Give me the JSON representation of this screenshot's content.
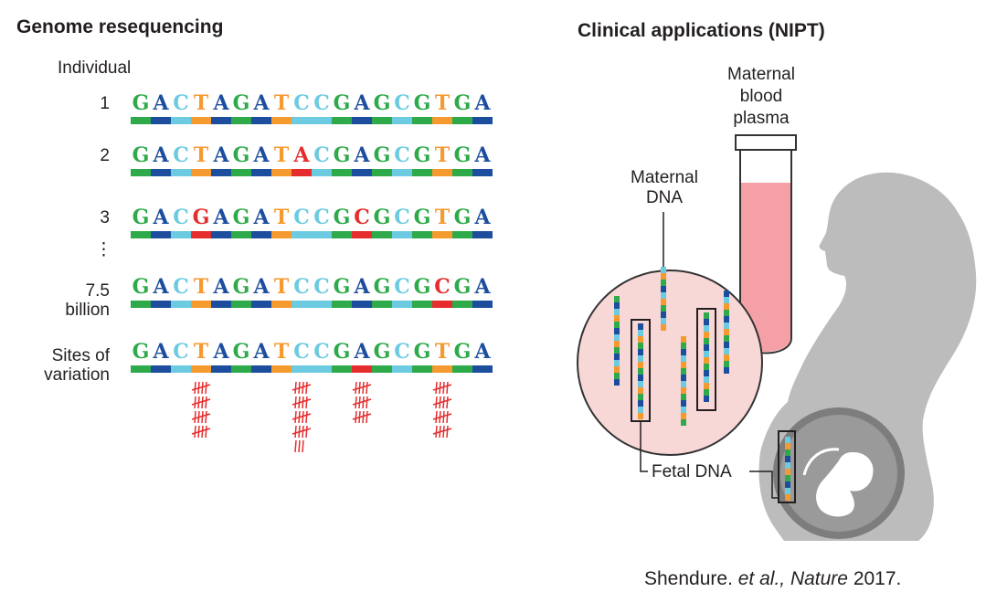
{
  "left": {
    "title": "Genome resequencing",
    "header": "Individual",
    "rows": [
      {
        "label": [
          "1"
        ],
        "seq": "GACTAGATCCGAGCGTGA",
        "var": []
      },
      {
        "label": [
          "2"
        ],
        "seq": "GACTAGATACGAGCGTGA",
        "var": [
          8
        ]
      },
      {
        "label": [
          "3"
        ],
        "seq": "GACGAGATCCGCGCGTGA",
        "var": [
          3,
          11
        ]
      },
      {
        "label": [
          "7.5",
          "billion"
        ],
        "seq": "GACTAGATCCGAGCGCGA",
        "var": [
          15
        ]
      },
      {
        "label": [
          "Sites of",
          "variation"
        ],
        "seq": "GACTAGATCCGAGCGTGA",
        "var": []
      }
    ],
    "ellipsis": "⋮",
    "variation_sites": [
      {
        "pos": 3,
        "tally": 20
      },
      {
        "pos": 8,
        "tally": 23
      },
      {
        "pos": 11,
        "tally": 15
      },
      {
        "pos": 15,
        "tally": 20
      }
    ]
  },
  "right": {
    "title": "Clinical applications (NIPT)",
    "tube_label": [
      "Maternal",
      "blood",
      "plasma"
    ],
    "maternal_dna_label": [
      "Maternal",
      "DNA"
    ],
    "fetal_dna_label": "Fetal DNA"
  },
  "citation": {
    "author": "Shendure. ",
    "etal": "et al., ",
    "journal": "Nature",
    "year": " 2017."
  },
  "colors": {
    "G": "#2eaa4a",
    "A": "#1d4e9e",
    "C": "#6ccbe0",
    "T": "#f59a2f",
    "variant": "#e52d2d",
    "silhouette": "#bcbcbc",
    "circle_fill": "#f8d7d7",
    "plasma": "#f4a0a6"
  }
}
